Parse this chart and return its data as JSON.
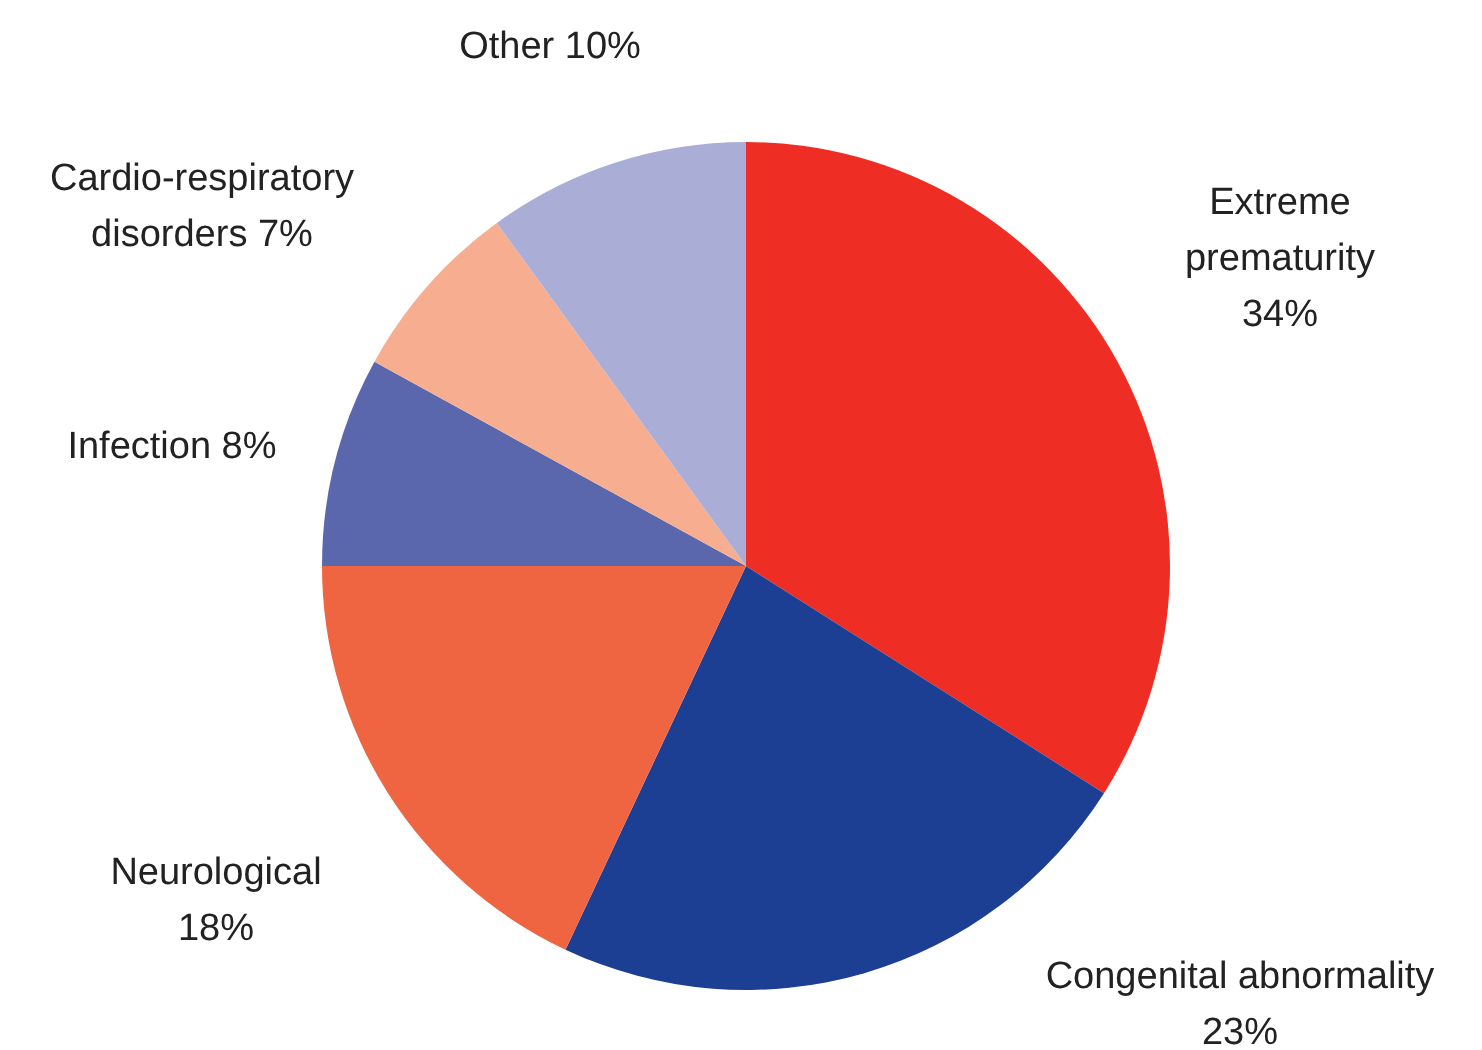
{
  "chart_data": {
    "type": "pie",
    "categories": [
      "Extreme prematurity",
      "Congenital abnormality",
      "Neurological",
      "Infection",
      "Cardio-respiratory disorders",
      "Other"
    ],
    "values": [
      34,
      23,
      18,
      8,
      7,
      10
    ],
    "value_labels": [
      "34%",
      "23%",
      "18%",
      "8%",
      "7%",
      "10%"
    ],
    "colors": [
      "#ee2e24",
      "#1c3f94",
      "#f06541",
      "#5b67ad",
      "#f7ad8f",
      "#aaaed6"
    ]
  }
}
